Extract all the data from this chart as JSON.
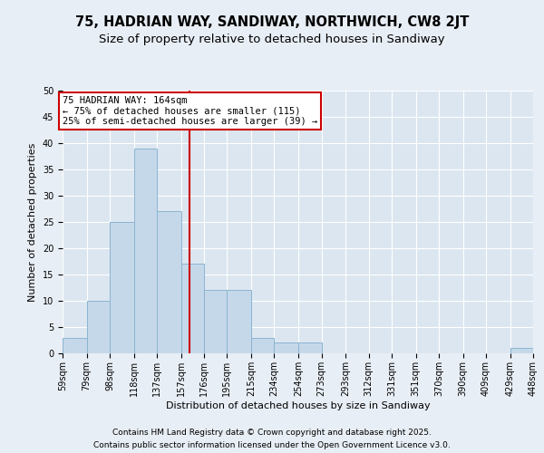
{
  "title_line1": "75, HADRIAN WAY, SANDIWAY, NORTHWICH, CW8 2JT",
  "title_line2": "Size of property relative to detached houses in Sandiway",
  "xlabel": "Distribution of detached houses by size in Sandiway",
  "ylabel": "Number of detached properties",
  "bin_edges": [
    59,
    79,
    98,
    118,
    137,
    157,
    176,
    195,
    215,
    234,
    254,
    273,
    293,
    312,
    331,
    351,
    370,
    390,
    409,
    429,
    448
  ],
  "bar_heights": [
    3,
    10,
    25,
    39,
    27,
    17,
    12,
    12,
    3,
    2,
    2,
    0,
    0,
    0,
    0,
    0,
    0,
    0,
    0,
    1
  ],
  "bar_color": "#c5d8ea",
  "bar_edge_color": "#8ab4d0",
  "bar_edge_width": 0.7,
  "vline_x": 164,
  "vline_color": "#cc0000",
  "annotation_text": "75 HADRIAN WAY: 164sqm\n← 75% of detached houses are smaller (115)\n25% of semi-detached houses are larger (39) →",
  "annotation_box_color": "#ffffff",
  "annotation_box_edge": "#cc0000",
  "ylim": [
    0,
    50
  ],
  "yticks": [
    0,
    5,
    10,
    15,
    20,
    25,
    30,
    35,
    40,
    45,
    50
  ],
  "background_color": "#e8eef5",
  "plot_background_color": "#dce6f0",
  "footer_line1": "Contains HM Land Registry data © Crown copyright and database right 2025.",
  "footer_line2": "Contains public sector information licensed under the Open Government Licence v3.0.",
  "title_fontsize": 10.5,
  "subtitle_fontsize": 9.5,
  "axis_label_fontsize": 8,
  "tick_fontsize": 7,
  "annotation_fontsize": 7.5,
  "footer_fontsize": 6.5,
  "grid_color": "#ffffff",
  "grid_linewidth": 0.8
}
